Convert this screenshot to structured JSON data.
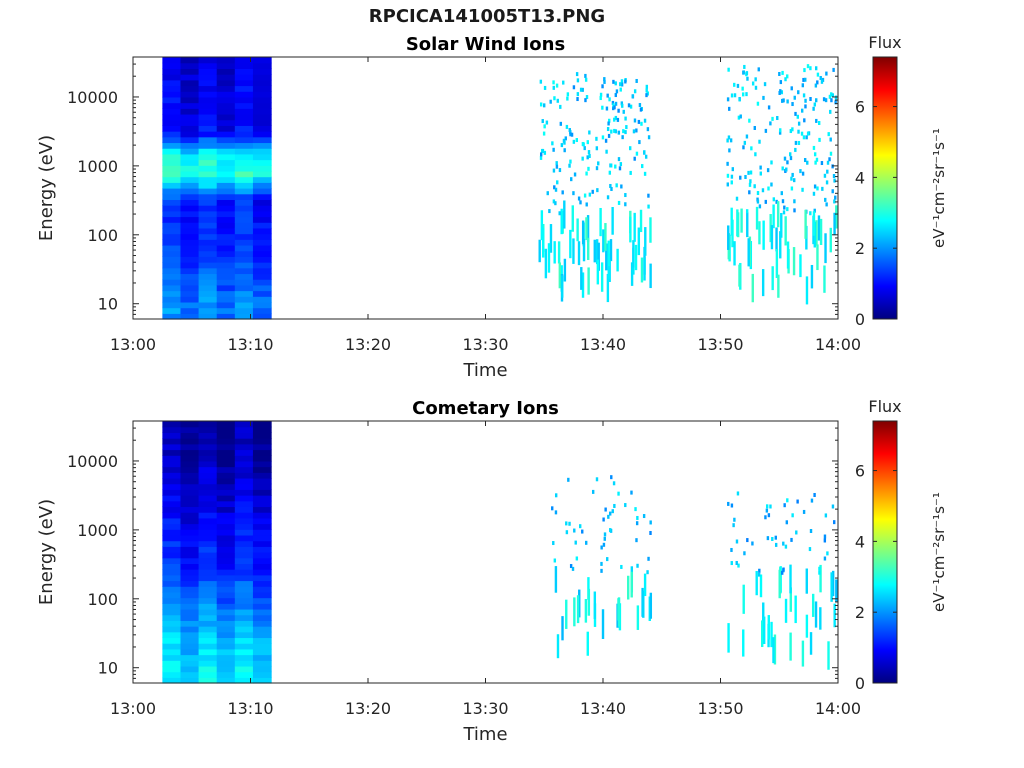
{
  "figure": {
    "title": "RPCICA141005T13.PNG"
  },
  "chart_data": [
    {
      "type": "heatmap",
      "title": "Solar Wind Ions",
      "xlabel": "Time",
      "ylabel": "Energy (eV)",
      "x_ticks": [
        "13:00",
        "13:10",
        "13:20",
        "13:30",
        "13:40",
        "13:50",
        "14:00"
      ],
      "x_range": [
        "13:00",
        "14:00"
      ],
      "y_scale": "log",
      "y_ticks": [
        "10",
        "100",
        "1000",
        "10000"
      ],
      "y_range": [
        6,
        38000
      ],
      "colorbar": {
        "label": "Flux",
        "units": "eV⁻¹cm⁻²sr⁻¹s⁻¹",
        "ticks": [
          "0",
          "2",
          "4",
          "6"
        ],
        "range": [
          0,
          7.4
        ],
        "colormap": "jet"
      },
      "dense_block": {
        "time_range": [
          "13:02:30",
          "13:11:45"
        ],
        "flux_by_energy": [
          {
            "energy_eV": 10,
            "flux": 1.8
          },
          {
            "energy_eV": 30,
            "flux": 1.4
          },
          {
            "energy_eV": 100,
            "flux": 1.1
          },
          {
            "energy_eV": 300,
            "flux": 1.0
          },
          {
            "energy_eV": 800,
            "flux": 3.0
          },
          {
            "energy_eV": 1500,
            "flux": 2.6
          },
          {
            "energy_eV": 3000,
            "flux": 0.8
          },
          {
            "energy_eV": 10000,
            "flux": 0.7
          },
          {
            "energy_eV": 30000,
            "flux": 0.6
          }
        ]
      },
      "sparse_intervals": [
        {
          "time_range": [
            "13:34:30",
            "13:44:00"
          ],
          "energy_range_eV": [
            15,
            22000
          ],
          "typical_flux": 2.4
        },
        {
          "time_range": [
            "13:50:30",
            "13:59:50"
          ],
          "energy_range_eV": [
            15,
            28000
          ],
          "typical_flux": 2.4
        }
      ]
    },
    {
      "type": "heatmap",
      "title": "Cometary Ions",
      "xlabel": "Time",
      "ylabel": "Energy (eV)",
      "x_ticks": [
        "13:00",
        "13:10",
        "13:20",
        "13:30",
        "13:40",
        "13:50",
        "14:00"
      ],
      "x_range": [
        "13:00",
        "14:00"
      ],
      "y_scale": "log",
      "y_ticks": [
        "10",
        "100",
        "1000",
        "10000"
      ],
      "y_range": [
        6,
        38000
      ],
      "colorbar": {
        "label": "Flux",
        "units": "eV⁻¹cm⁻²sr⁻¹s⁻¹",
        "ticks": [
          "0",
          "2",
          "4",
          "6"
        ],
        "range": [
          0,
          7.4
        ],
        "colormap": "jet"
      },
      "dense_block": {
        "time_range": [
          "13:02:30",
          "13:11:45"
        ],
        "flux_by_energy": [
          {
            "energy_eV": 10,
            "flux": 2.5
          },
          {
            "energy_eV": 30,
            "flux": 2.2
          },
          {
            "energy_eV": 100,
            "flux": 1.6
          },
          {
            "energy_eV": 300,
            "flux": 1.1
          },
          {
            "energy_eV": 1000,
            "flux": 0.9
          },
          {
            "energy_eV": 3000,
            "flux": 0.6
          },
          {
            "energy_eV": 10000,
            "flux": 0.3
          },
          {
            "energy_eV": 30000,
            "flux": 0.2
          }
        ]
      },
      "sparse_intervals": [
        {
          "time_range": [
            "13:35:30",
            "13:44:00"
          ],
          "energy_range_eV": [
            15,
            6000
          ],
          "typical_flux": 2.3
        },
        {
          "time_range": [
            "13:50:30",
            "13:59:50"
          ],
          "energy_range_eV": [
            15,
            3500
          ],
          "typical_flux": 2.3
        }
      ]
    }
  ]
}
